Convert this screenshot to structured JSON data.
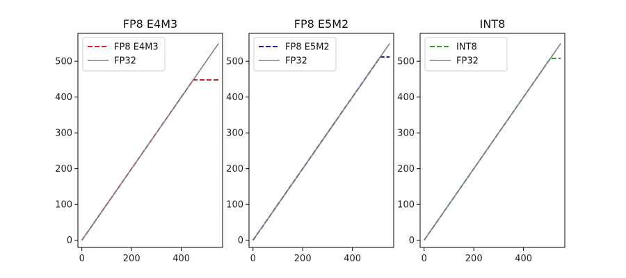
{
  "chart_data": [
    {
      "type": "line",
      "title": "FP8 E4M3",
      "xlabel": "",
      "ylabel": "",
      "xlim": [
        -16,
        566
      ],
      "ylim": [
        -20,
        578
      ],
      "xticks": [
        0,
        200,
        400
      ],
      "yticks": [
        0,
        100,
        200,
        300,
        400,
        500
      ],
      "legend": "top-left",
      "grid": false,
      "series": [
        {
          "name": "FP8 E4M3",
          "style": "dashed",
          "color": "#d62728",
          "x": [
            0,
            64,
            64,
            72,
            72,
            80,
            80,
            88,
            88,
            96,
            96,
            104,
            104,
            112,
            112,
            120,
            120,
            128,
            128,
            144,
            144,
            160,
            160,
            176,
            176,
            192,
            192,
            208,
            208,
            224,
            224,
            240,
            240,
            256,
            256,
            288,
            288,
            320,
            320,
            352,
            352,
            384,
            384,
            416,
            416,
            448,
            448,
            550
          ],
          "y": [
            0,
            64,
            64,
            72,
            72,
            80,
            80,
            88,
            88,
            96,
            96,
            104,
            104,
            112,
            112,
            120,
            120,
            128,
            128,
            144,
            144,
            160,
            160,
            176,
            176,
            192,
            192,
            208,
            208,
            224,
            224,
            240,
            240,
            256,
            256,
            288,
            288,
            320,
            320,
            352,
            352,
            384,
            384,
            416,
            416,
            448,
            448,
            448
          ]
        },
        {
          "name": "FP32",
          "style": "solid",
          "color": "#7f7f7f",
          "x": [
            0,
            550
          ],
          "y": [
            0,
            550
          ]
        }
      ]
    },
    {
      "type": "line",
      "title": "FP8 E5M2",
      "xlabel": "",
      "ylabel": "",
      "xlim": [
        -16,
        566
      ],
      "ylim": [
        -20,
        578
      ],
      "xticks": [
        0,
        200,
        400
      ],
      "yticks": [
        0,
        100,
        200,
        300,
        400,
        500
      ],
      "legend": "top-left",
      "grid": false,
      "series": [
        {
          "name": "FP8 E5M2",
          "style": "dashed",
          "color": "#1f1f9e",
          "x": [
            0,
            64,
            64,
            80,
            80,
            96,
            96,
            112,
            112,
            128,
            128,
            160,
            160,
            192,
            192,
            224,
            224,
            256,
            256,
            320,
            320,
            384,
            384,
            448,
            448,
            512,
            512,
            550
          ],
          "y": [
            0,
            64,
            64,
            80,
            80,
            96,
            96,
            112,
            112,
            128,
            128,
            160,
            160,
            192,
            192,
            224,
            224,
            256,
            256,
            320,
            320,
            384,
            384,
            448,
            448,
            512,
            512,
            512
          ]
        },
        {
          "name": "FP32",
          "style": "solid",
          "color": "#7f7f7f",
          "x": [
            0,
            550
          ],
          "y": [
            0,
            550
          ]
        }
      ]
    },
    {
      "type": "line",
      "title": "INT8",
      "xlabel": "",
      "ylabel": "",
      "xlim": [
        -16,
        566
      ],
      "ylim": [
        -20,
        578
      ],
      "xticks": [
        0,
        200,
        400
      ],
      "yticks": [
        0,
        100,
        200,
        300,
        400,
        500
      ],
      "legend": "top-left",
      "grid": false,
      "series": [
        {
          "name": "INT8",
          "style": "dashed",
          "color": "#2ca02c",
          "x": [
            0,
            508,
            508,
            550
          ],
          "y": [
            0,
            508,
            508,
            508
          ]
        },
        {
          "name": "FP32",
          "style": "solid",
          "color": "#7f7f7f",
          "x": [
            0,
            550
          ],
          "y": [
            0,
            550
          ]
        }
      ]
    }
  ]
}
